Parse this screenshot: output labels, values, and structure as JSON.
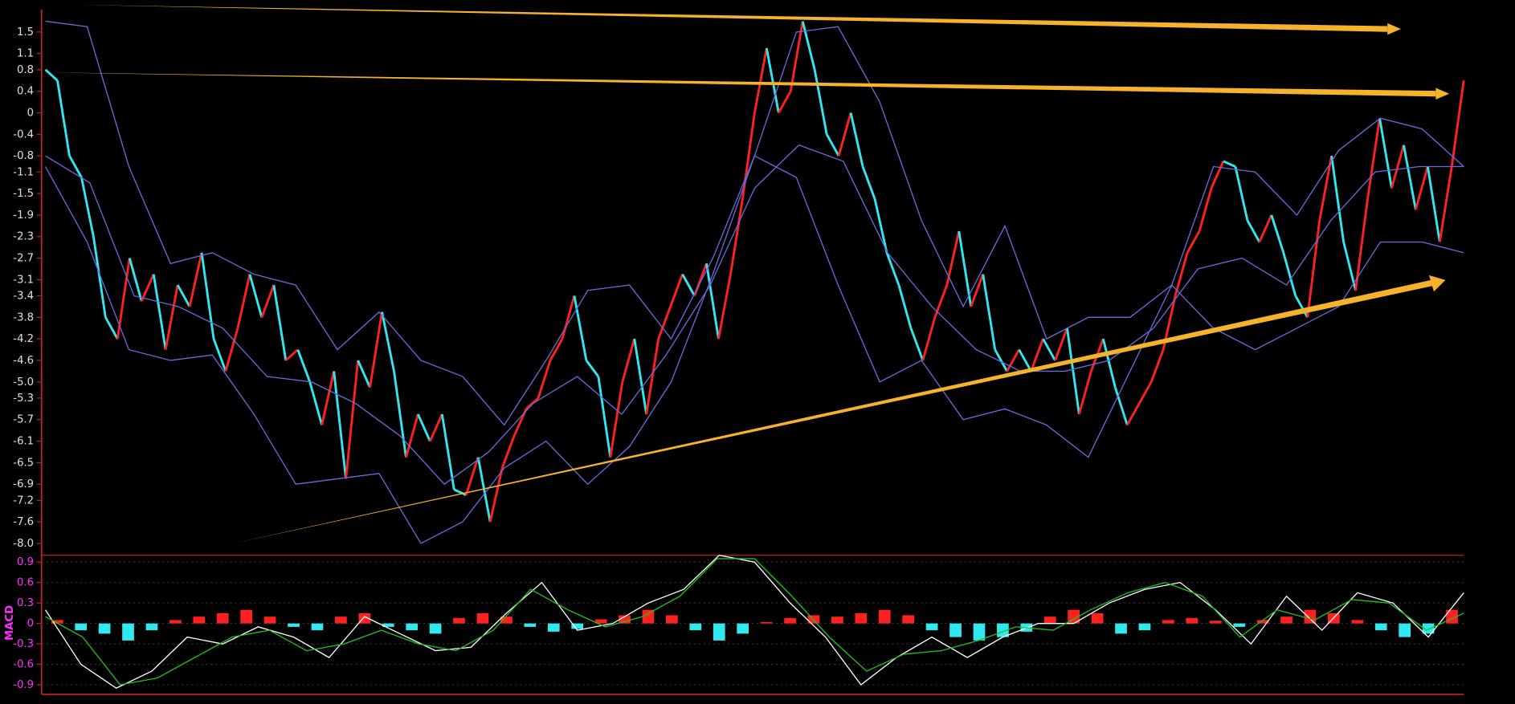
{
  "chart_data": [
    {
      "type": "renko",
      "ylim": [
        -8.22,
        1.88
      ],
      "yticks": [
        1.5,
        1.1,
        0.8,
        0.4,
        0,
        -0.4,
        -0.8,
        -1.1,
        -1.5,
        -1.9,
        -2.3,
        -2.7,
        -3.1,
        -3.4,
        -3.8,
        -4.2,
        -4.6,
        {
          "value": -5,
          "label": "-5.0"
        },
        -5.3,
        -5.7,
        -6.1,
        -6.5,
        -6.9,
        -7.2,
        -7.6,
        {
          "value": -8,
          "label": "-8.0"
        }
      ],
      "bricks": {
        "up_color": "#ff2020",
        "down_color": "#30e8f0",
        "values": [
          0.8,
          0.6,
          -0.8,
          -1.2,
          -2.3,
          -3.8,
          -4.2,
          -2.7,
          -3.5,
          -3.0,
          -4.4,
          -3.2,
          -3.6,
          -2.6,
          -4.2,
          -4.8,
          -4.0,
          -3.0,
          -3.8,
          -3.2,
          -4.6,
          -4.4,
          -5.0,
          -5.8,
          -4.8,
          -6.8,
          -4.6,
          -5.1,
          -3.7,
          -4.8,
          -6.4,
          -5.6,
          -6.1,
          -5.6,
          -7.0,
          -7.1,
          -6.4,
          -7.6,
          -6.6,
          -6.0,
          -5.5,
          -5.3,
          -4.6,
          -4.2,
          -3.4,
          -4.6,
          -4.9,
          -6.4,
          -5.0,
          -4.2,
          -5.6,
          -4.2,
          -3.6,
          -3.0,
          -3.4,
          -2.8,
          -4.2,
          -3.0,
          -1.6,
          0.0,
          1.2,
          0.0,
          0.4,
          1.7,
          0.8,
          -0.4,
          -0.8,
          0,
          -1.0,
          -1.6,
          -2.6,
          -3.2,
          -4.0,
          -4.6,
          -3.8,
          -3.2,
          -2.2,
          -3.6,
          -3.0,
          -4.4,
          -4.8,
          -4.4,
          -4.8,
          -4.2,
          -4.6,
          -4.0,
          -5.6,
          -4.8,
          -4.2,
          -5.1,
          -5.8,
          -5.4,
          -5.0,
          -4.4,
          -3.4,
          -2.6,
          -2.2,
          -1.4,
          -0.9,
          -1.0,
          -2.0,
          -2.4,
          -1.9,
          -2.6,
          -3.4,
          -3.8,
          -2.0,
          -0.8,
          -2.4,
          -3.3,
          -1.6,
          -0.1,
          -1.4,
          -0.6,
          -1.8,
          -1.0,
          -2.4,
          -1.0,
          0.6
        ]
      },
      "series": [
        {
          "color": "#6a6adc",
          "values": [
            1.7,
            1.6,
            -1.0,
            -2.8,
            -2.6,
            -3.0,
            -3.2,
            -4.4,
            -3.7,
            -4.6,
            -4.9,
            -5.8,
            -4.6,
            -3.3,
            -3.2,
            -4.2,
            -2.7,
            -0.8,
            1.5,
            1.6,
            0.2,
            -2.0,
            -3.6,
            -2.1,
            -4.2,
            -3.8,
            -3.8,
            -3.2,
            -1.0,
            -1.1,
            -1.9,
            -0.7,
            -0.1,
            -0.3,
            -1.0
          ]
        },
        {
          "color": "#6a6adc",
          "values": [
            -0.8,
            -1.3,
            -3.4,
            -3.6,
            -4.0,
            -4.9,
            -5.0,
            -5.4,
            -6.0,
            -6.9,
            -6.3,
            -5.4,
            -4.9,
            -5.6,
            -4.5,
            -3.2,
            -1.4,
            -0.6,
            -0.9,
            -2.6,
            -3.6,
            -4.4,
            -4.8,
            -4.8,
            -4.6,
            -4.0,
            -2.9,
            -2.7,
            -3.2,
            -2.0,
            -1.1,
            -1.0,
            -1.0
          ]
        },
        {
          "color": "#6a6adc",
          "values": [
            -1.0,
            -2.4,
            -4.4,
            -4.6,
            -4.5,
            -5.6,
            -6.9,
            -6.8,
            -6.7,
            -8.0,
            -7.6,
            -6.6,
            -6.1,
            -6.9,
            -6.2,
            -5.0,
            -3.0,
            -0.8,
            -1.2,
            -3.2,
            -5.0,
            -4.6,
            -5.7,
            -5.5,
            -5.8,
            -6.4,
            -4.8,
            -3.2,
            -4.0,
            -4.4,
            -4.0,
            -3.6,
            -2.4,
            -2.4,
            -2.6
          ]
        }
      ]
    },
    {
      "type": "macd",
      "label": "MACD",
      "ylim": [
        -1.04,
        1.0
      ],
      "yticks": [
        0.9,
        0.6,
        0.3,
        0,
        -0.3,
        -0.6,
        -0.9
      ],
      "grid": true,
      "histogram": {
        "up_color": "#ff2020",
        "down_color": "#30e8f0",
        "values": [
          0.05,
          -0.1,
          -0.15,
          -0.25,
          -0.1,
          0.05,
          0.1,
          0.15,
          0.2,
          0.1,
          -0.05,
          -0.1,
          0.1,
          0.15,
          -0.05,
          -0.1,
          -0.15,
          0.08,
          0.15,
          0.1,
          -0.05,
          -0.12,
          -0.08,
          0.06,
          0.12,
          0.2,
          0.12,
          -0.1,
          -0.25,
          -0.15,
          0.02,
          0.08,
          0.12,
          0.1,
          0.15,
          0.2,
          0.12,
          -0.1,
          -0.2,
          -0.25,
          -0.2,
          -0.12,
          0.1,
          0.2,
          0.15,
          -0.15,
          -0.1,
          0.05,
          0.08,
          0.04,
          -0.05,
          0.05,
          0.1,
          0.2,
          0.15,
          0.05,
          -0.1,
          -0.2,
          -0.15,
          0.2
        ]
      },
      "series": [
        {
          "color": "#ffffff",
          "values": [
            0.2,
            -0.6,
            -0.95,
            -0.7,
            -0.2,
            -0.3,
            -0.05,
            -0.2,
            -0.5,
            0.1,
            -0.15,
            -0.4,
            -0.35,
            0.15,
            0.6,
            -0.1,
            0.0,
            0.3,
            0.5,
            1.0,
            0.9,
            0.3,
            -0.2,
            -0.9,
            -0.5,
            -0.2,
            -0.5,
            -0.2,
            0.0,
            0.0,
            0.3,
            0.5,
            0.6,
            0.2,
            -0.3,
            0.4,
            -0.1,
            0.45,
            0.3,
            -0.2,
            0.45
          ]
        },
        {
          "color": "#20c020",
          "values": [
            0.1,
            -0.2,
            -0.9,
            -0.8,
            -0.5,
            -0.2,
            -0.1,
            -0.4,
            -0.3,
            -0.1,
            -0.3,
            -0.4,
            -0.1,
            0.5,
            0.2,
            -0.05,
            0.1,
            0.4,
            0.95,
            0.95,
            0.4,
            -0.2,
            -0.7,
            -0.45,
            -0.4,
            -0.25,
            -0.05,
            -0.1,
            0.2,
            0.45,
            0.6,
            0.4,
            -0.2,
            0.2,
            0.05,
            0.35,
            0.3,
            -0.1,
            0.15
          ]
        }
      ]
    }
  ]
}
